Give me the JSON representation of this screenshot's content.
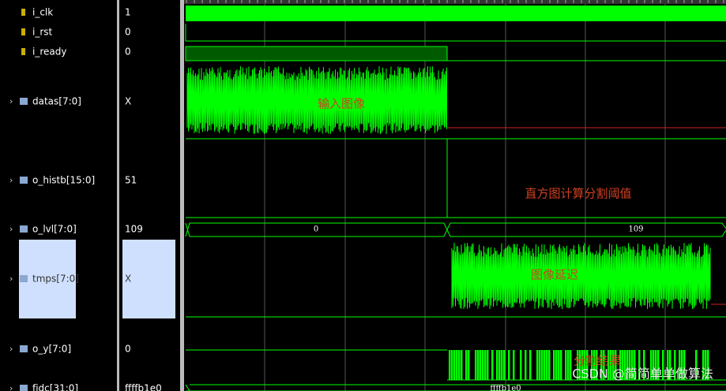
{
  "signals": [
    {
      "name": "i_clk",
      "value": "1"
    },
    {
      "name": "i_rst",
      "value": "0"
    },
    {
      "name": "i_ready",
      "value": "0"
    },
    {
      "name": "datas[7:0]",
      "value": "X"
    },
    {
      "name": "o_histb[15:0]",
      "value": "51"
    },
    {
      "name": "o_lvl[7:0]",
      "value": "109"
    },
    {
      "name": "tmps[7:0]",
      "value": "X"
    },
    {
      "name": "o_y[7:0]",
      "value": "0"
    },
    {
      "name": "fjdc[31:0]",
      "value": "ffffb1e0"
    }
  ],
  "bus_labels": [
    "0",
    "109",
    "ffffb1e0"
  ],
  "annotations": [
    "输入图像",
    "直方图计算分割阈值",
    "图像延迟",
    "分割结果"
  ],
  "watermark": "CSDN @简简单单做算法"
}
